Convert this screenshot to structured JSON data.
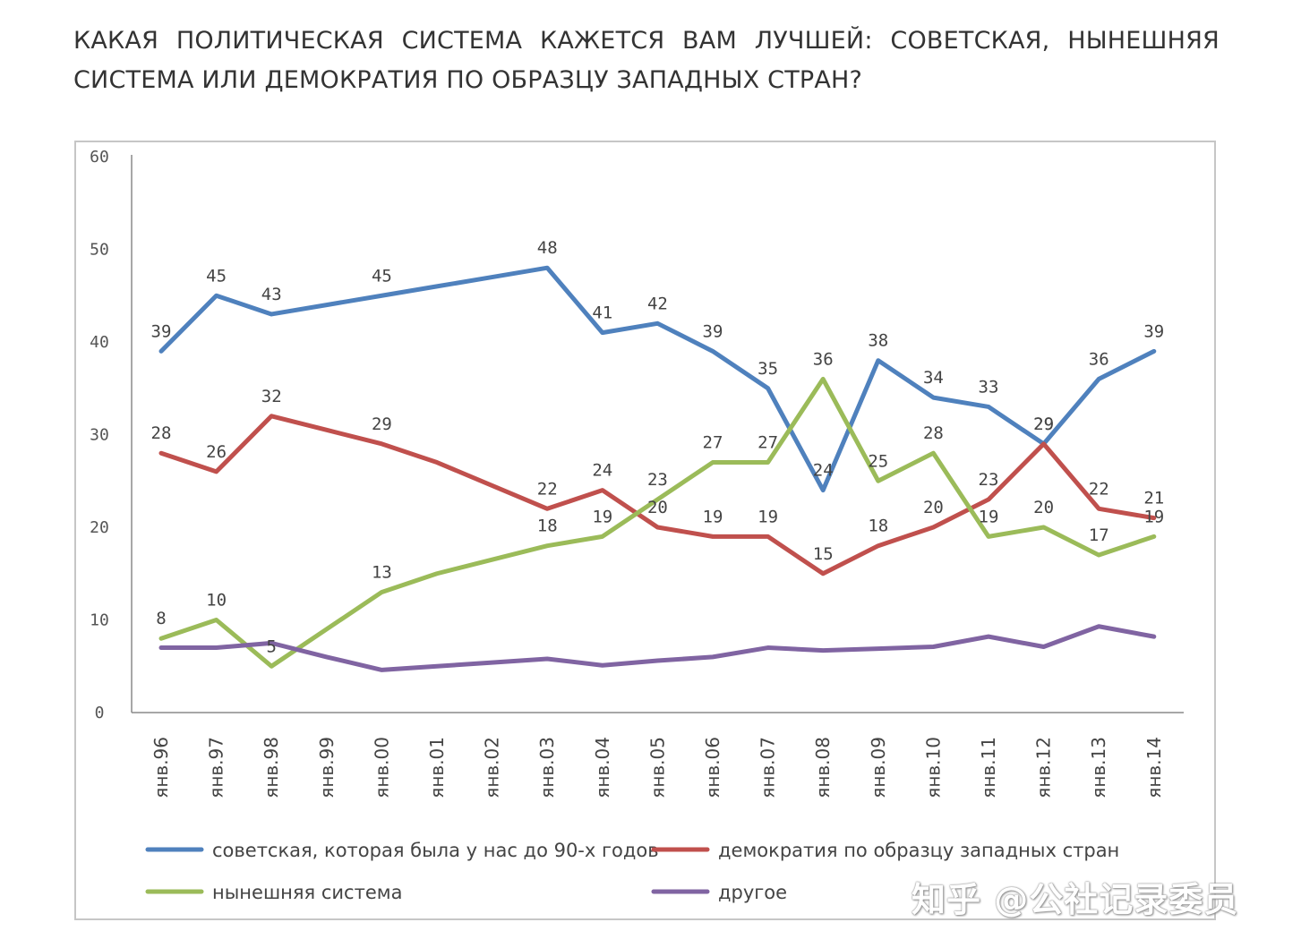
{
  "title": "КАКАЯ ПОЛИТИЧЕСКАЯ СИСТЕМА КАЖЕТСЯ ВАМ ЛУЧШЕЙ: СОВЕТСКАЯ, НЫНЕШНЯЯ СИСТЕМА ИЛИ ДЕМОКРАТИЯ ПО ОБРАЗЦУ ЗАПАДНЫХ СТРАН?",
  "watermark": "知乎 @公社记录委员",
  "chart_data": {
    "type": "line",
    "title": "",
    "xlabel": "",
    "ylabel": "",
    "ylim": [
      0,
      60
    ],
    "yticks": [
      0,
      10,
      20,
      30,
      40,
      50,
      60
    ],
    "grid": false,
    "legend_position": "bottom",
    "categories": [
      "янв.96",
      "янв.97",
      "янв.98",
      "янв.99",
      "янв.00",
      "янв.01",
      "янв.02",
      "янв.03",
      "янв.04",
      "янв.05",
      "янв.06",
      "янв.07",
      "янв.08",
      "янв.09",
      "янв.10",
      "янв.11",
      "янв.12",
      "янв.13",
      "янв.14"
    ],
    "series": [
      {
        "name": "советская, которая была у нас до 90-х годов",
        "color": "#4f81bd",
        "values": [
          39,
          45,
          43,
          44,
          45,
          46,
          47,
          48,
          41,
          42,
          39,
          35,
          24,
          38,
          34,
          33,
          29,
          36,
          39
        ],
        "labels": [
          "39",
          "45",
          "43",
          "",
          "45",
          "",
          "",
          "48",
          "41",
          "42",
          "39",
          "35",
          "24",
          "38",
          "34",
          "33",
          "29",
          "36",
          "39"
        ]
      },
      {
        "name": "демократия по образцу западных стран",
        "color": "#c0504d",
        "values": [
          28,
          26,
          32,
          30.5,
          29,
          27,
          24.5,
          22,
          24,
          20,
          19,
          19,
          15,
          18,
          20,
          23,
          29,
          22,
          21
        ],
        "labels": [
          "28",
          "26",
          "32",
          "",
          "29",
          "",
          "",
          "22",
          "24",
          "20",
          "19",
          "19",
          "15",
          "18",
          "20",
          "23",
          "29",
          "22",
          "21"
        ]
      },
      {
        "name": "нынешняя система",
        "color": "#9bbb59",
        "values": [
          8,
          10,
          5,
          9,
          13,
          15,
          16.5,
          18,
          19,
          23,
          27,
          27,
          36,
          25,
          28,
          19,
          20,
          17,
          19
        ],
        "labels": [
          "8",
          "10",
          "5",
          "",
          "13",
          "",
          "",
          "18",
          "19",
          "23",
          "27",
          "27",
          "36",
          "25",
          "28",
          "19",
          "20",
          "17",
          "19"
        ]
      },
      {
        "name": "другое",
        "color": "#8064a2",
        "values": [
          7,
          7,
          7.5,
          6,
          4.6,
          5,
          5.4,
          5.8,
          5.1,
          5.6,
          6,
          7,
          6.7,
          6.9,
          7.1,
          8.2,
          7.1,
          9.3,
          8.2
        ],
        "labels": []
      }
    ]
  }
}
